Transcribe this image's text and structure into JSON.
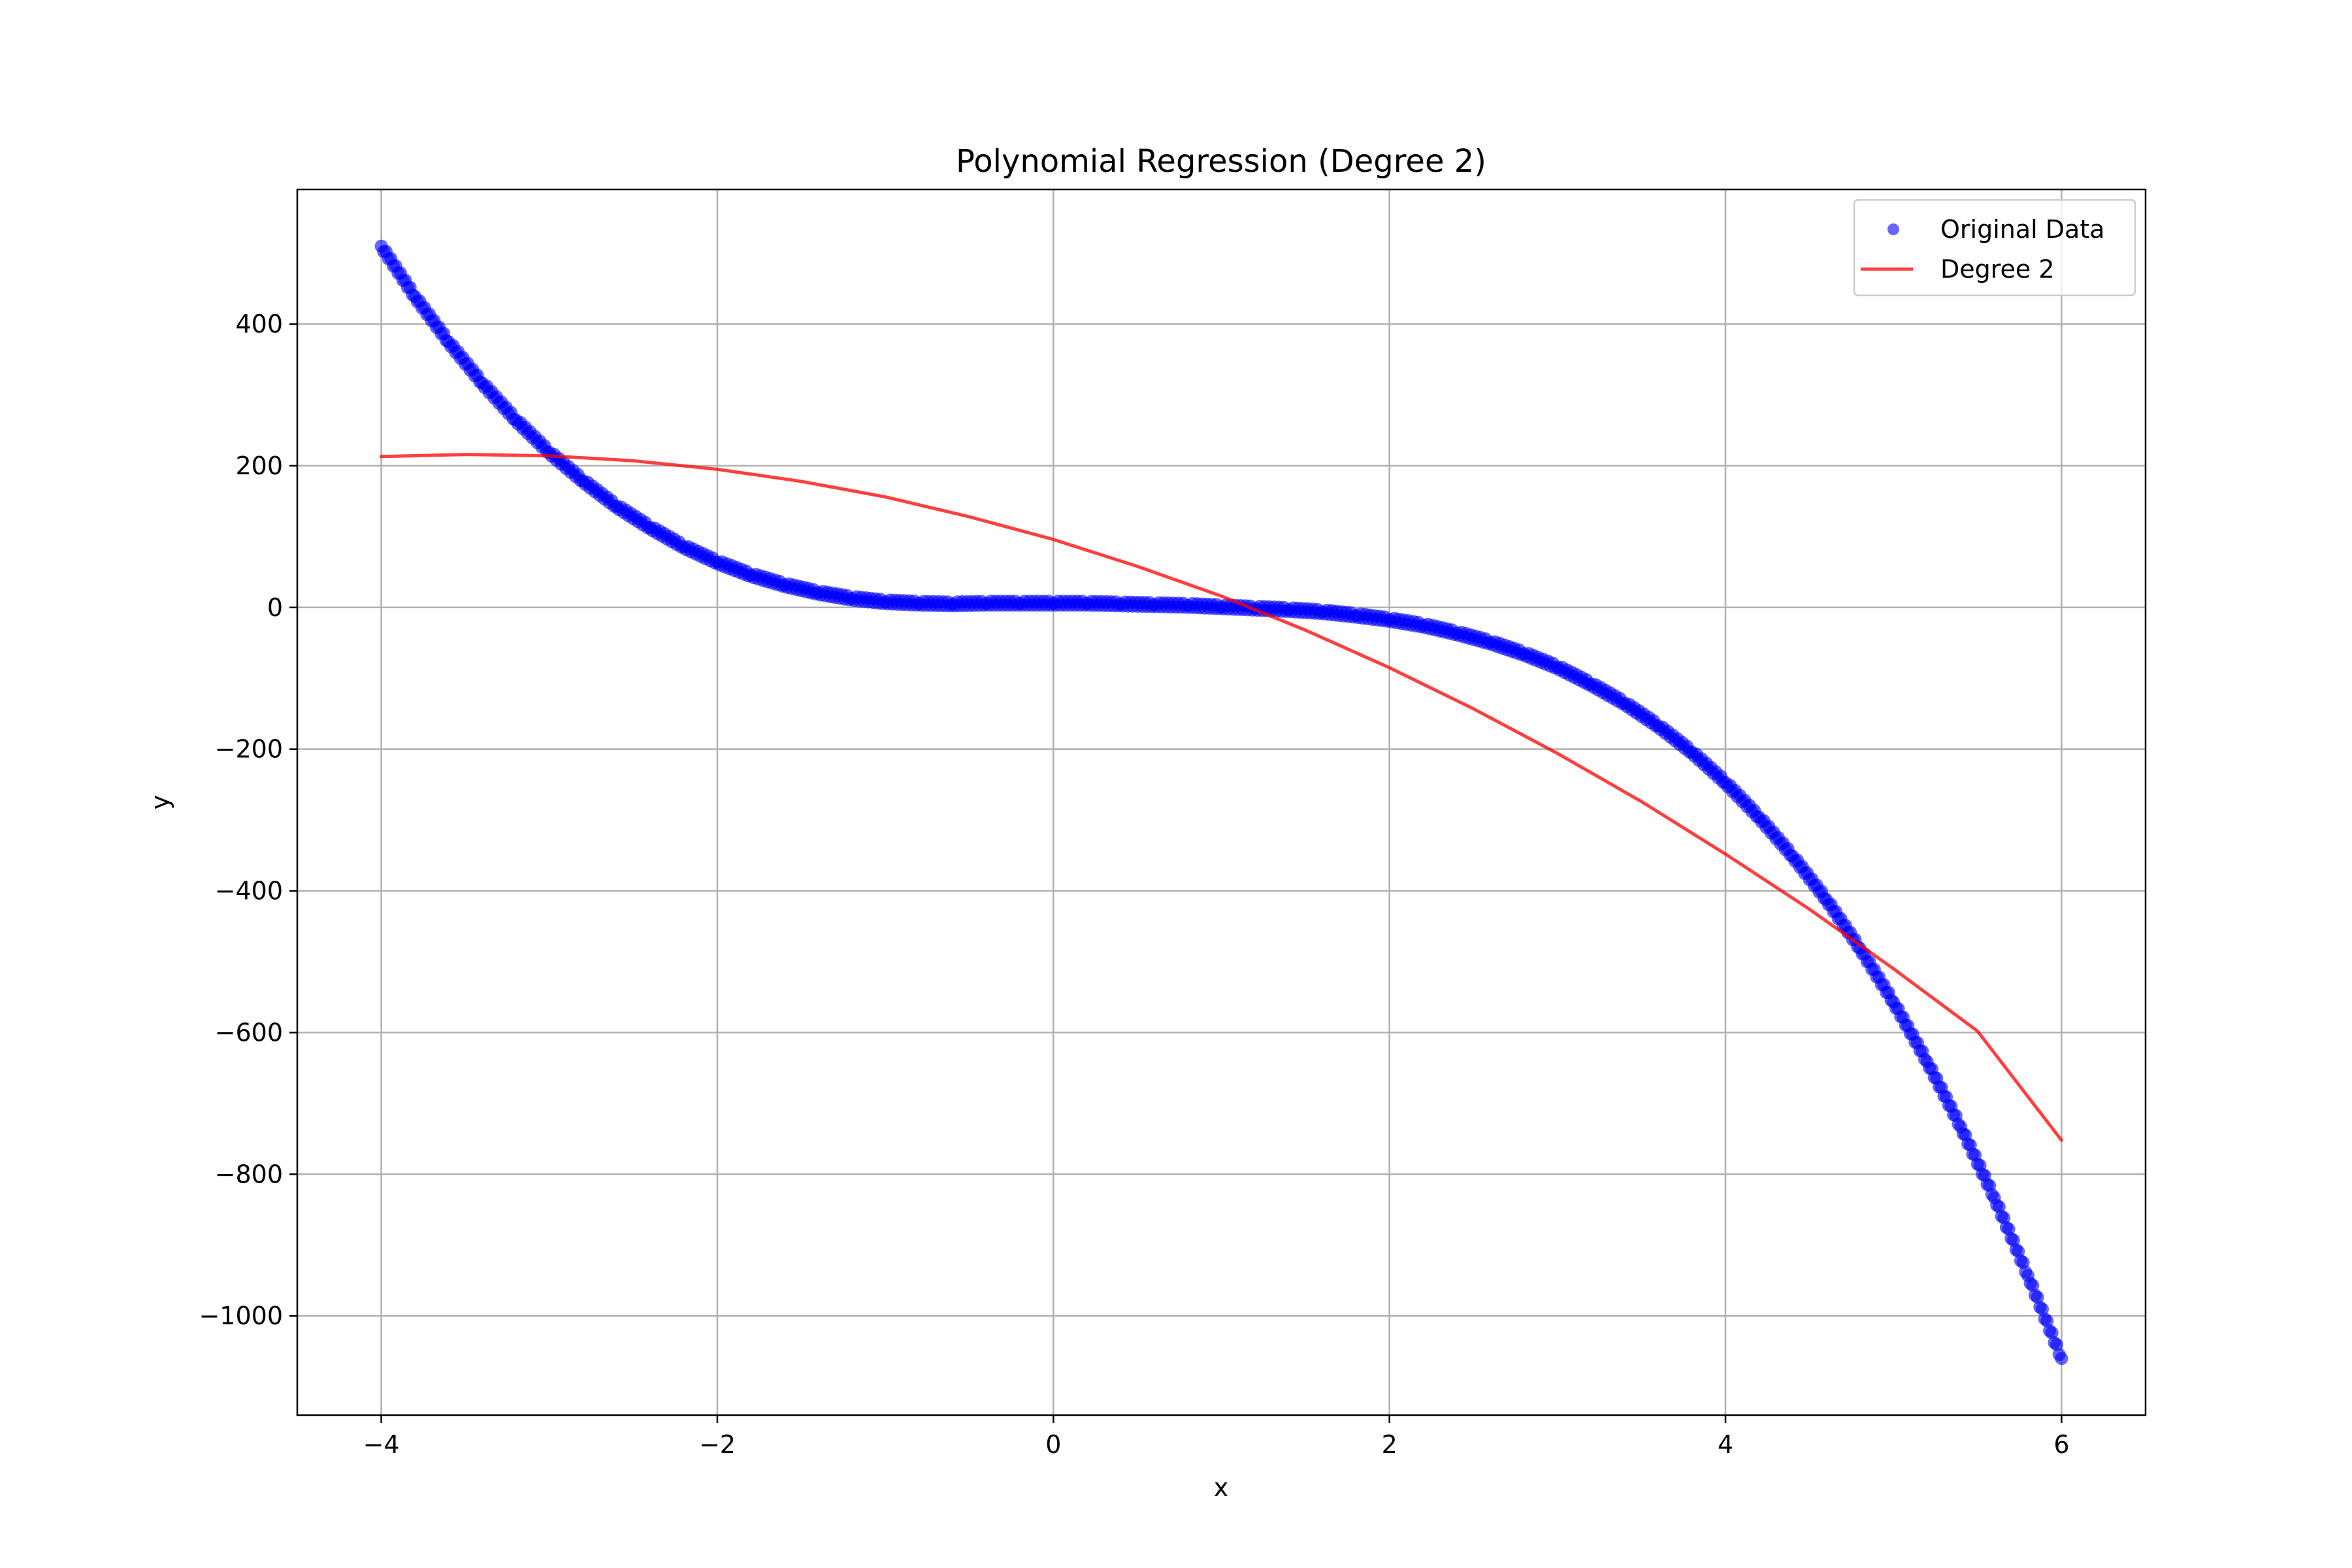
{
  "chart_data": {
    "type": "scatter",
    "title": "Polynomial Regression (Degree 2)",
    "xlabel": "x",
    "ylabel": "y",
    "xlim": [
      -4.5,
      6.5
    ],
    "ylim": [
      -1140,
      590
    ],
    "xticks": [
      -4,
      -2,
      0,
      2,
      4,
      6
    ],
    "xtick_labels": [
      "−4",
      "−2",
      "0",
      "2",
      "4",
      "6"
    ],
    "yticks": [
      -1000,
      -800,
      -600,
      -400,
      -200,
      0,
      200,
      400
    ],
    "ytick_labels": [
      "−1000",
      "−800",
      "−600",
      "−400",
      "−200",
      "0",
      "200",
      "400"
    ],
    "grid": true,
    "legend_position": "top-right",
    "series": [
      {
        "name": "Original Data",
        "kind": "scatter",
        "color": "#0000ff",
        "x": [
          -4.0,
          -3.8,
          -3.6,
          -3.4,
          -3.2,
          -3.0,
          -2.8,
          -2.6,
          -2.4,
          -2.2,
          -2.0,
          -1.8,
          -1.6,
          -1.4,
          -1.2,
          -1.0,
          -0.8,
          -0.6,
          -0.4,
          -0.2,
          0.0,
          0.2,
          0.4,
          0.6,
          0.8,
          1.0,
          1.2,
          1.4,
          1.6,
          1.8,
          2.0,
          2.2,
          2.4,
          2.6,
          2.8,
          3.0,
          3.2,
          3.4,
          3.6,
          3.8,
          4.0,
          4.2,
          4.4,
          4.6,
          4.8,
          5.0,
          5.2,
          5.4,
          5.6,
          5.8,
          6.0
        ],
        "y": [
          510,
          439,
          375,
          317,
          265,
          219,
          179,
          143,
          113,
          86,
          64,
          46,
          32,
          21,
          13,
          8,
          6,
          5,
          6,
          6,
          6,
          6,
          5,
          4,
          3,
          1,
          -1,
          -3,
          -6,
          -11,
          -17,
          -25,
          -36,
          -49,
          -65,
          -84,
          -108,
          -135,
          -167,
          -204,
          -247,
          -296,
          -351,
          -412,
          -481,
          -557,
          -641,
          -733,
          -833,
          -943,
          -1060
        ]
      },
      {
        "name": "Degree 2",
        "kind": "line",
        "color": "#ff0000",
        "x": [
          -4.0,
          -3.5,
          -3.0,
          -2.5,
          -2.0,
          -1.5,
          -1.0,
          -0.5,
          0.0,
          0.5,
          1.0,
          1.5,
          2.0,
          2.5,
          3.0,
          3.5,
          4.0,
          4.5,
          5.0,
          5.5,
          6.0
        ],
        "y": [
          213,
          216,
          214,
          207,
          195,
          178,
          156,
          128,
          96,
          58,
          16,
          -32,
          -85,
          -143,
          -206,
          -274,
          -348,
          -426,
          -510,
          -598,
          -752
        ]
      }
    ]
  }
}
